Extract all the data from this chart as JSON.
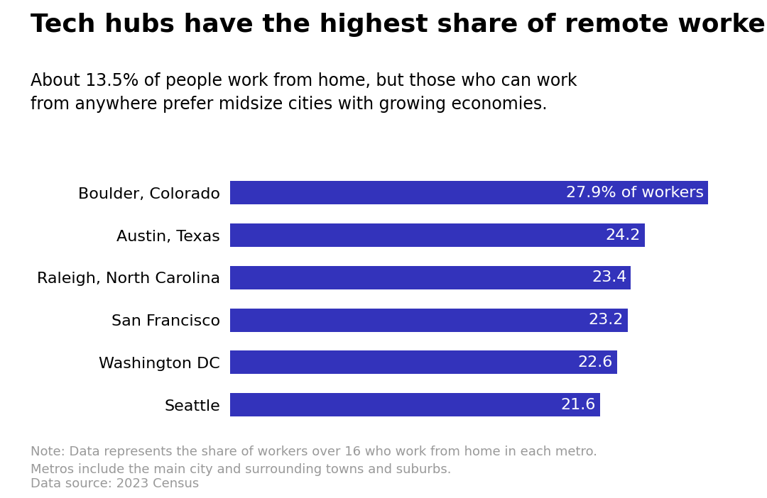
{
  "title": "Tech hubs have the highest share of remote workers",
  "subtitle": "About 13.5% of people work from home, but those who can work\nfrom anywhere prefer midsize cities with growing economies.",
  "categories": [
    "Seattle",
    "Washington DC",
    "San Francisco",
    "Raleigh, North Carolina",
    "Austin, Texas",
    "Boulder, Colorado"
  ],
  "values": [
    21.6,
    22.6,
    23.2,
    23.4,
    24.2,
    27.9
  ],
  "bar_labels": [
    "21.6",
    "22.6",
    "23.2",
    "23.4",
    "24.2",
    "27.9% of workers"
  ],
  "bar_color": "#3333bb",
  "bar_label_color": "#ffffff",
  "background_color": "#ffffff",
  "title_color": "#000000",
  "subtitle_color": "#000000",
  "note_line1": "Note: Data represents the share of workers over 16 who work from home in each metro.",
  "note_line2": "Metros include the main city and surrounding towns and suburbs.",
  "note_line3": "Data source: 2023 Census",
  "note_color": "#999999",
  "title_fontsize": 26,
  "subtitle_fontsize": 17,
  "label_fontsize": 16,
  "bar_label_fontsize": 16,
  "note_fontsize": 13,
  "xlim": [
    0,
    30
  ],
  "tick_label_color": "#000000"
}
